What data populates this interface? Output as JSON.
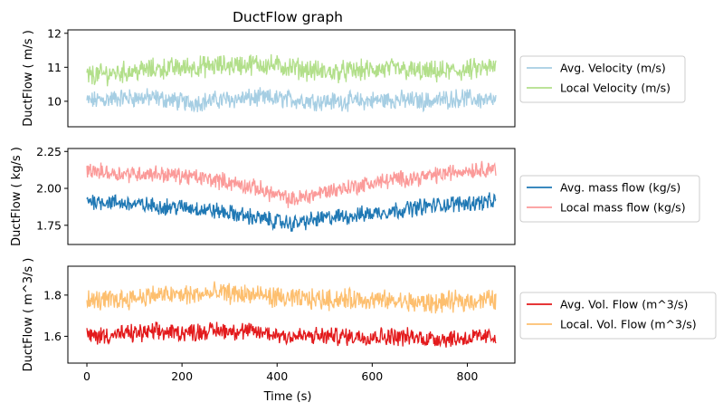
{
  "title": "DuctFlow graph",
  "xlabel": "Time (s)",
  "chart_data": [
    {
      "type": "line",
      "title": "DuctFlow graph",
      "xlabel": "",
      "ylabel": "DuctFlow ( m/s )",
      "xlim": [
        -40,
        900
      ],
      "ylim": [
        9.25,
        12.1
      ],
      "yticks": [
        10,
        11,
        12
      ],
      "xticks": [],
      "legend_position": "right",
      "series": [
        {
          "name": "Avg. Velocity (m/s)",
          "color": "#a6cee3",
          "x_range": [
            0,
            860
          ],
          "base": [
            10.0,
            10.1,
            10.1,
            9.95,
            10.05,
            10.1,
            10.05,
            10.0,
            10.0,
            10.05,
            10.0,
            10.1,
            10.0
          ],
          "noise": 0.22
        },
        {
          "name": "Local Velocity (m/s)",
          "color": "#b2df8a",
          "x_range": [
            0,
            860
          ],
          "base": [
            10.75,
            10.85,
            10.95,
            11.0,
            11.05,
            11.1,
            11.0,
            10.85,
            10.9,
            10.95,
            10.85,
            10.9,
            11.0
          ],
          "noise": 0.25
        }
      ]
    },
    {
      "type": "line",
      "xlabel": "",
      "ylabel": "DuctFlow ( kg/s )",
      "xlim": [
        -40,
        900
      ],
      "ylim": [
        1.62,
        2.27
      ],
      "yticks": [
        1.75,
        2.0,
        2.25
      ],
      "ytick_labels": [
        "1.75",
        "2.00",
        "2.25"
      ],
      "xticks": [],
      "legend_position": "right",
      "series": [
        {
          "name": "Avg. mass flow (kg/s)",
          "color": "#1f78b4",
          "x_range": [
            0,
            860
          ],
          "base": [
            1.92,
            1.9,
            1.88,
            1.87,
            1.84,
            1.8,
            1.76,
            1.8,
            1.82,
            1.85,
            1.88,
            1.9,
            1.91
          ],
          "noise": 0.045
        },
        {
          "name": "Local mass flow (kg/s)",
          "color": "#fb9a99",
          "x_range": [
            0,
            860
          ],
          "base": [
            2.12,
            2.1,
            2.1,
            2.08,
            2.05,
            2.0,
            1.92,
            1.98,
            2.02,
            2.06,
            2.08,
            2.12,
            2.14
          ],
          "noise": 0.045
        }
      ]
    },
    {
      "type": "line",
      "xlabel": "Time (s)",
      "ylabel": "DuctFlow ( m^3/s )",
      "xlim": [
        -40,
        900
      ],
      "ylim": [
        1.47,
        1.94
      ],
      "yticks": [
        1.6,
        1.8
      ],
      "xticks": [
        0,
        200,
        400,
        600,
        800
      ],
      "legend_position": "right",
      "series": [
        {
          "name": "Avg. Vol. Flow (m^3/s)",
          "color": "#e31a1c",
          "x_range": [
            0,
            860
          ],
          "base": [
            1.6,
            1.61,
            1.62,
            1.62,
            1.63,
            1.62,
            1.6,
            1.6,
            1.6,
            1.6,
            1.59,
            1.59,
            1.6
          ],
          "noise": 0.035
        },
        {
          "name": "Local. Vol. Flow (m^3/s)",
          "color": "#fdbf6f",
          "x_range": [
            0,
            860
          ],
          "base": [
            1.77,
            1.78,
            1.8,
            1.8,
            1.81,
            1.8,
            1.78,
            1.78,
            1.78,
            1.77,
            1.76,
            1.77,
            1.78
          ],
          "noise": 0.04
        }
      ]
    }
  ]
}
